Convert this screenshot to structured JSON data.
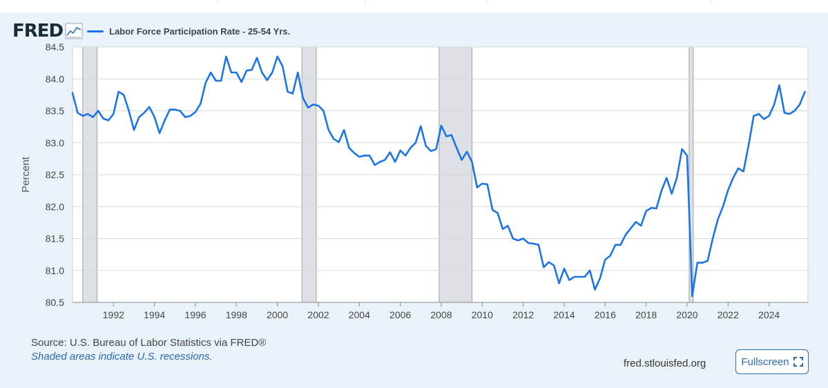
{
  "header": {
    "logo_text": "FRED",
    "logo_icon": "line-chart-icon",
    "accent_color": "#1b74e4"
  },
  "chart_data": {
    "type": "line",
    "title": "Labor Force Participation Rate - 25-54 Yrs.",
    "xlabel": "",
    "ylabel": "Percent",
    "xlim": [
      1990.0,
      2025.9
    ],
    "ylim": [
      80.5,
      84.5
    ],
    "yticks": [
      "80.5",
      "81.0",
      "81.5",
      "82.0",
      "82.5",
      "83.0",
      "83.5",
      "84.0",
      "84.5"
    ],
    "xticks": [
      "1992",
      "1994",
      "1996",
      "1998",
      "2000",
      "2002",
      "2004",
      "2006",
      "2008",
      "2010",
      "2012",
      "2014",
      "2016",
      "2018",
      "2020",
      "2022",
      "2024"
    ],
    "recessions": [
      [
        1990.5,
        1991.2
      ],
      [
        2001.2,
        2001.9
      ],
      [
        2007.9,
        2009.5
      ],
      [
        2020.1,
        2020.3
      ]
    ],
    "series": [
      {
        "name": "Labor Force Participation Rate - 25-54 Yrs.",
        "color": "#1b74e4",
        "x": [
          1990.0,
          1990.25,
          1990.5,
          1990.75,
          1991.0,
          1991.25,
          1991.5,
          1991.75,
          1992.0,
          1992.25,
          1992.5,
          1992.75,
          1993.0,
          1993.25,
          1993.5,
          1993.75,
          1994.0,
          1994.25,
          1994.5,
          1994.75,
          1995.0,
          1995.25,
          1995.5,
          1995.75,
          1996.0,
          1996.25,
          1996.5,
          1996.75,
          1997.0,
          1997.25,
          1997.5,
          1997.75,
          1998.0,
          1998.25,
          1998.5,
          1998.75,
          1999.0,
          1999.25,
          1999.5,
          1999.75,
          2000.0,
          2000.25,
          2000.5,
          2000.75,
          2001.0,
          2001.25,
          2001.5,
          2001.75,
          2002.0,
          2002.25,
          2002.5,
          2002.75,
          2003.0,
          2003.25,
          2003.5,
          2003.75,
          2004.0,
          2004.25,
          2004.5,
          2004.75,
          2005.0,
          2005.25,
          2005.5,
          2005.75,
          2006.0,
          2006.25,
          2006.5,
          2006.75,
          2007.0,
          2007.25,
          2007.5,
          2007.75,
          2008.0,
          2008.25,
          2008.5,
          2008.75,
          2009.0,
          2009.25,
          2009.5,
          2009.75,
          2010.0,
          2010.25,
          2010.5,
          2010.75,
          2011.0,
          2011.25,
          2011.5,
          2011.75,
          2012.0,
          2012.25,
          2012.5,
          2012.75,
          2013.0,
          2013.25,
          2013.5,
          2013.75,
          2014.0,
          2014.25,
          2014.5,
          2014.75,
          2015.0,
          2015.25,
          2015.5,
          2015.75,
          2016.0,
          2016.25,
          2016.5,
          2016.75,
          2017.0,
          2017.25,
          2017.5,
          2017.75,
          2018.0,
          2018.25,
          2018.5,
          2018.75,
          2019.0,
          2019.25,
          2019.5,
          2019.75,
          2020.0,
          2020.25,
          2020.5,
          2020.75,
          2021.0,
          2021.25,
          2021.5,
          2021.75,
          2022.0,
          2022.25,
          2022.5,
          2022.75,
          2023.0,
          2023.25,
          2023.5,
          2023.75,
          2024.0,
          2024.25,
          2024.5,
          2024.75,
          2025.0,
          2025.25,
          2025.5,
          2025.75
        ],
        "values": [
          83.78,
          83.47,
          83.42,
          83.45,
          83.4,
          83.5,
          83.38,
          83.35,
          83.45,
          83.8,
          83.75,
          83.5,
          83.2,
          83.4,
          83.47,
          83.56,
          83.4,
          83.15,
          83.35,
          83.52,
          83.52,
          83.5,
          83.4,
          83.42,
          83.48,
          83.61,
          83.94,
          84.1,
          83.97,
          83.97,
          84.35,
          84.1,
          84.1,
          83.95,
          84.13,
          84.14,
          84.33,
          84.1,
          83.98,
          84.1,
          84.35,
          84.2,
          83.8,
          83.77,
          84.1,
          83.7,
          83.55,
          83.6,
          83.58,
          83.5,
          83.2,
          83.06,
          83.01,
          83.2,
          82.92,
          82.84,
          82.78,
          82.8,
          82.8,
          82.65,
          82.7,
          82.73,
          82.85,
          82.7,
          82.88,
          82.8,
          82.92,
          83.0,
          83.26,
          82.95,
          82.87,
          82.9,
          83.27,
          83.1,
          83.12,
          82.92,
          82.73,
          82.86,
          82.7,
          82.3,
          82.36,
          82.35,
          81.95,
          81.9,
          81.65,
          81.7,
          81.5,
          81.47,
          81.5,
          81.43,
          81.42,
          81.4,
          81.05,
          81.13,
          81.08,
          80.8,
          81.03,
          80.85,
          80.9,
          80.9,
          80.9,
          81.0,
          80.7,
          80.88,
          81.17,
          81.23,
          81.4,
          81.4,
          81.56,
          81.66,
          81.76,
          81.7,
          81.93,
          81.98,
          81.97,
          82.25,
          82.45,
          82.2,
          82.45,
          82.9,
          82.8,
          80.6,
          81.12,
          81.12,
          81.15,
          81.5,
          81.8,
          82.0,
          82.26,
          82.45,
          82.6,
          82.55,
          82.96,
          83.42,
          83.45,
          83.37,
          83.42,
          83.6,
          83.9,
          83.47,
          83.45,
          83.5,
          83.6,
          83.8
        ]
      }
    ],
    "source_text": "Source: U.S. Bureau of Labor Statistics via FRED®",
    "note_text": "Shaded areas indicate U.S. recessions."
  },
  "footer": {
    "site": "fred.stlouisfed.org",
    "fullscreen_label": "Fullscreen",
    "fullscreen_icon": "expand-icon"
  }
}
